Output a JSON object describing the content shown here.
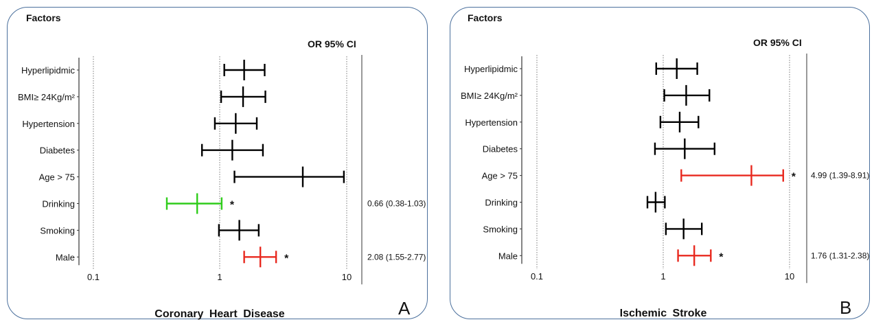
{
  "chart_data": [
    {
      "type": "forest",
      "panel_letter": "A",
      "title": "Coronary Heart Disease",
      "factors_label": "Factors",
      "or_header": "OR 95% CI",
      "x_scale": "log",
      "x_ticks": [
        "0.1",
        "1",
        "10"
      ],
      "xlim": [
        0.1,
        10
      ],
      "colors": {
        "default": "#000000",
        "risk": "#e8281e",
        "protective": "#2ecc1a"
      },
      "rows": [
        {
          "label": "Hyperlipidmic",
          "or": 1.55,
          "lo": 1.08,
          "hi": 2.25,
          "color": "#000000",
          "sig": "",
          "or_text": ""
        },
        {
          "label": "BMI≥ 24Kg/m²",
          "or": 1.52,
          "lo": 1.02,
          "hi": 2.28,
          "color": "#000000",
          "sig": "",
          "or_text": ""
        },
        {
          "label": "Hypertension",
          "or": 1.33,
          "lo": 0.91,
          "hi": 1.95,
          "color": "#000000",
          "sig": "",
          "or_text": ""
        },
        {
          "label": "Diabetes",
          "or": 1.25,
          "lo": 0.72,
          "hi": 2.18,
          "color": "#000000",
          "sig": "",
          "or_text": ""
        },
        {
          "label": "Age > 75",
          "or": 4.5,
          "lo": 1.3,
          "hi": 9.5,
          "color": "#000000",
          "sig": "",
          "or_text": ""
        },
        {
          "label": "Drinking",
          "or": 0.66,
          "lo": 0.38,
          "hi": 1.03,
          "color": "#2ecc1a",
          "sig": "*",
          "or_text": "0.66 (0.38-1.03)"
        },
        {
          "label": "Smoking",
          "or": 1.42,
          "lo": 0.98,
          "hi": 2.02,
          "color": "#000000",
          "sig": "",
          "or_text": ""
        },
        {
          "label": "Male",
          "or": 2.08,
          "lo": 1.55,
          "hi": 2.77,
          "color": "#e8281e",
          "sig": "*",
          "or_text": "2.08 (1.55-2.77)"
        }
      ]
    },
    {
      "type": "forest",
      "panel_letter": "B",
      "title": "Ischemic Stroke",
      "factors_label": "Factors",
      "or_header": "OR 95% CI",
      "x_scale": "log",
      "x_ticks": [
        "0.1",
        "1",
        "10"
      ],
      "xlim": [
        0.1,
        10
      ],
      "colors": {
        "default": "#000000",
        "risk": "#e8281e"
      },
      "rows": [
        {
          "label": "Hyperlipidmic",
          "or": 1.28,
          "lo": 0.88,
          "hi": 1.86,
          "color": "#000000",
          "sig": "",
          "or_text": ""
        },
        {
          "label": "BMI≥ 24Kg/m²",
          "or": 1.52,
          "lo": 1.02,
          "hi": 2.32,
          "color": "#000000",
          "sig": "",
          "or_text": ""
        },
        {
          "label": "Hypertension",
          "or": 1.35,
          "lo": 0.95,
          "hi": 1.9,
          "color": "#000000",
          "sig": "",
          "or_text": ""
        },
        {
          "label": "Diabetes",
          "or": 1.48,
          "lo": 0.86,
          "hi": 2.55,
          "color": "#000000",
          "sig": "",
          "or_text": ""
        },
        {
          "label": "Age > 75",
          "or": 4.99,
          "lo": 1.39,
          "hi": 8.91,
          "color": "#e8281e",
          "sig": "*",
          "or_text": "4.99 (1.39-8.91)"
        },
        {
          "label": "Drinking",
          "or": 0.87,
          "lo": 0.75,
          "hi": 1.03,
          "color": "#000000",
          "sig": "",
          "or_text": ""
        },
        {
          "label": "Smoking",
          "or": 1.45,
          "lo": 1.05,
          "hi": 2.02,
          "color": "#000000",
          "sig": "",
          "or_text": ""
        },
        {
          "label": "Male",
          "or": 1.76,
          "lo": 1.31,
          "hi": 2.38,
          "color": "#e8281e",
          "sig": "*",
          "or_text": "1.76 (1.31-2.38)"
        }
      ]
    }
  ]
}
